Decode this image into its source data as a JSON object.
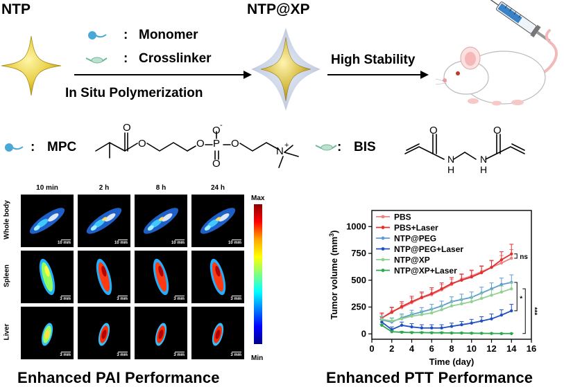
{
  "scheme": {
    "ntp_label": "NTP",
    "ntp_xp_label": "NTP@XP",
    "colon": ":",
    "monomer_label": "Monomer",
    "crosslinker_label": "Crosslinker",
    "process_label": "In Situ Polymerization",
    "stability_label": "High Stability",
    "mpc_label": "MPC",
    "bis_label": "BIS",
    "chem_o": "O",
    "chem_p": "P",
    "chem_o_minus": "O",
    "minus_sign": "-",
    "chem_n_plus": "N",
    "plus_sign": "+",
    "chem_nh1": "N",
    "chem_h1": "H",
    "chem_nh2": "N",
    "chem_h2": "H"
  },
  "pai": {
    "title": "Enhanced PAI Performance",
    "columns": [
      "10 min",
      "2 h",
      "8 h",
      "24 h"
    ],
    "rows": [
      "Whole body",
      "Spleen",
      "Liver"
    ],
    "scale_whole": "10 mm",
    "scale_organ": "3 mm",
    "colorbar_max": "Max",
    "colorbar_min": "Min",
    "colors": {
      "max": "#c00000",
      "mid": "#20e0ff",
      "min": "#0000a0"
    }
  },
  "ptt": {
    "title": "Enhanced PTT Performance",
    "chart_data": {
      "type": "line",
      "xlabel": "Time (day)",
      "ylabel": "Tumor volume (mm³)",
      "ylabel_main": "Tumor volume (mm",
      "ylabel_sup": "3",
      "ylabel_close": ")",
      "xlim": [
        0,
        16
      ],
      "ylim": [
        -50,
        1150
      ],
      "xticks": [
        0,
        2,
        4,
        6,
        8,
        10,
        12,
        14,
        16
      ],
      "yticks": [
        0,
        250,
        500,
        750,
        1000
      ],
      "x": [
        1,
        2,
        3,
        4,
        5,
        6,
        7,
        8,
        9,
        10,
        11,
        12,
        13,
        14
      ],
      "series": [
        {
          "name": "PBS",
          "color": "#f08080",
          "values": [
            145,
            210,
            245,
            290,
            335,
            365,
            410,
            460,
            510,
            540,
            580,
            620,
            660,
            705
          ],
          "err": [
            40,
            40,
            40,
            45,
            45,
            50,
            50,
            50,
            50,
            55,
            55,
            60,
            70,
            80
          ]
        },
        {
          "name": "PBS+Laser",
          "color": "#e03030",
          "values": [
            150,
            200,
            255,
            300,
            340,
            375,
            420,
            470,
            500,
            530,
            570,
            620,
            690,
            745
          ],
          "err": [
            45,
            45,
            45,
            50,
            50,
            55,
            55,
            55,
            55,
            60,
            60,
            65,
            75,
            90
          ]
        },
        {
          "name": "NTP@PEG",
          "color": "#5b9bd5",
          "values": [
            130,
            110,
            150,
            180,
            205,
            230,
            260,
            300,
            320,
            340,
            380,
            420,
            460,
            480
          ],
          "err": [
            30,
            35,
            35,
            40,
            40,
            45,
            45,
            45,
            50,
            50,
            55,
            55,
            60,
            70
          ]
        },
        {
          "name": "NTP@PEG+Laser",
          "color": "#1f4fc0",
          "values": [
            110,
            40,
            80,
            65,
            55,
            55,
            55,
            70,
            85,
            100,
            120,
            140,
            175,
            215
          ],
          "err": [
            25,
            25,
            30,
            30,
            30,
            30,
            30,
            30,
            30,
            35,
            40,
            45,
            50,
            60
          ]
        },
        {
          "name": "NTP@XP",
          "color": "#90d090",
          "values": [
            135,
            120,
            140,
            165,
            180,
            195,
            225,
            260,
            280,
            300,
            330,
            360,
            390,
            420
          ],
          "err": [
            30,
            30,
            35,
            35,
            35,
            40,
            40,
            40,
            45,
            45,
            50,
            50,
            55,
            60
          ]
        },
        {
          "name": "NTP@XP+Laser",
          "color": "#2ea84f",
          "values": [
            80,
            20,
            15,
            12,
            12,
            10,
            10,
            8,
            8,
            6,
            5,
            4,
            3,
            3
          ],
          "err": [
            10,
            10,
            8,
            8,
            6,
            6,
            6,
            5,
            5,
            5,
            4,
            4,
            3,
            3
          ]
        }
      ],
      "annotations": [
        {
          "label": "ns",
          "series_pair": [
            "PBS",
            "PBS+Laser"
          ]
        },
        {
          "label": "*",
          "series_pair": [
            "NTP@PEG",
            "NTP@PEG+Laser"
          ]
        },
        {
          "label": "***",
          "series_pair": [
            "NTP@XP",
            "NTP@XP+Laser"
          ]
        }
      ]
    }
  }
}
